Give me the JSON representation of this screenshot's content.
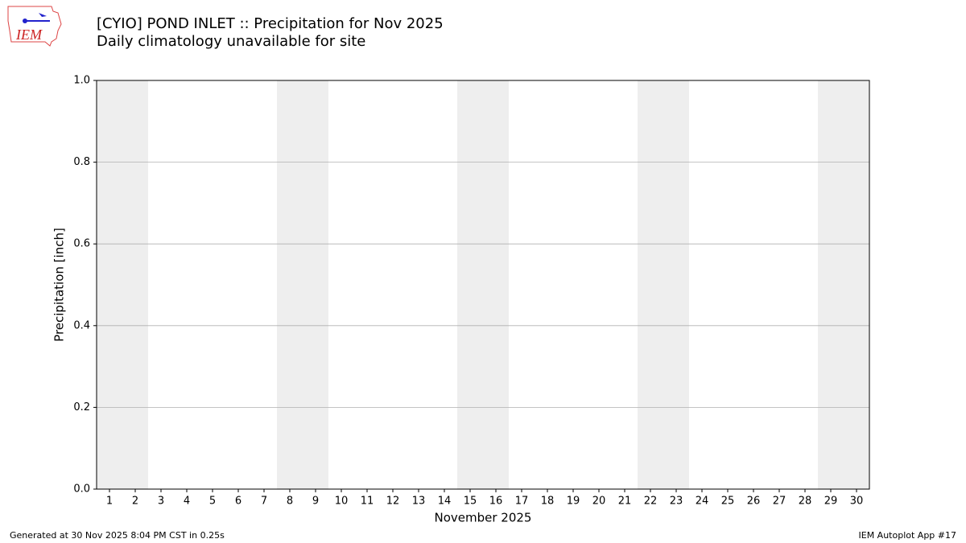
{
  "chart_data": {
    "type": "bar",
    "title": "[CYIO] POND INLET :: Precipitation for Nov 2025",
    "subtitle": "Daily climatology unavailable for site",
    "xlabel": "November 2025",
    "ylabel": "Precipitation [inch]",
    "xlim": [
      0.5,
      30.5
    ],
    "xticks": [
      1,
      2,
      3,
      4,
      5,
      6,
      7,
      8,
      9,
      10,
      11,
      12,
      13,
      14,
      15,
      16,
      17,
      18,
      19,
      20,
      21,
      22,
      23,
      24,
      25,
      26,
      27,
      28,
      29,
      30
    ],
    "ylim": [
      0,
      1
    ],
    "yticks": [
      {
        "value": 0,
        "label": "0.0"
      },
      0.2,
      0.4,
      0.6,
      0.8,
      {
        "value": 1,
        "label": "1.0"
      }
    ],
    "grid": "y",
    "shaded_spans": [
      [
        0.5,
        2.5
      ],
      [
        7.5,
        9.5
      ],
      [
        14.5,
        16.5
      ],
      [
        21.5,
        23.5
      ],
      [
        28.5,
        30.5
      ]
    ],
    "shade_color": "#eeeeee"
  },
  "logo": {
    "text": "IEM"
  },
  "footer": {
    "left": "Generated at 30 Nov 2025 8:04 PM CST in 0.25s",
    "right": "IEM Autoplot App #17"
  }
}
